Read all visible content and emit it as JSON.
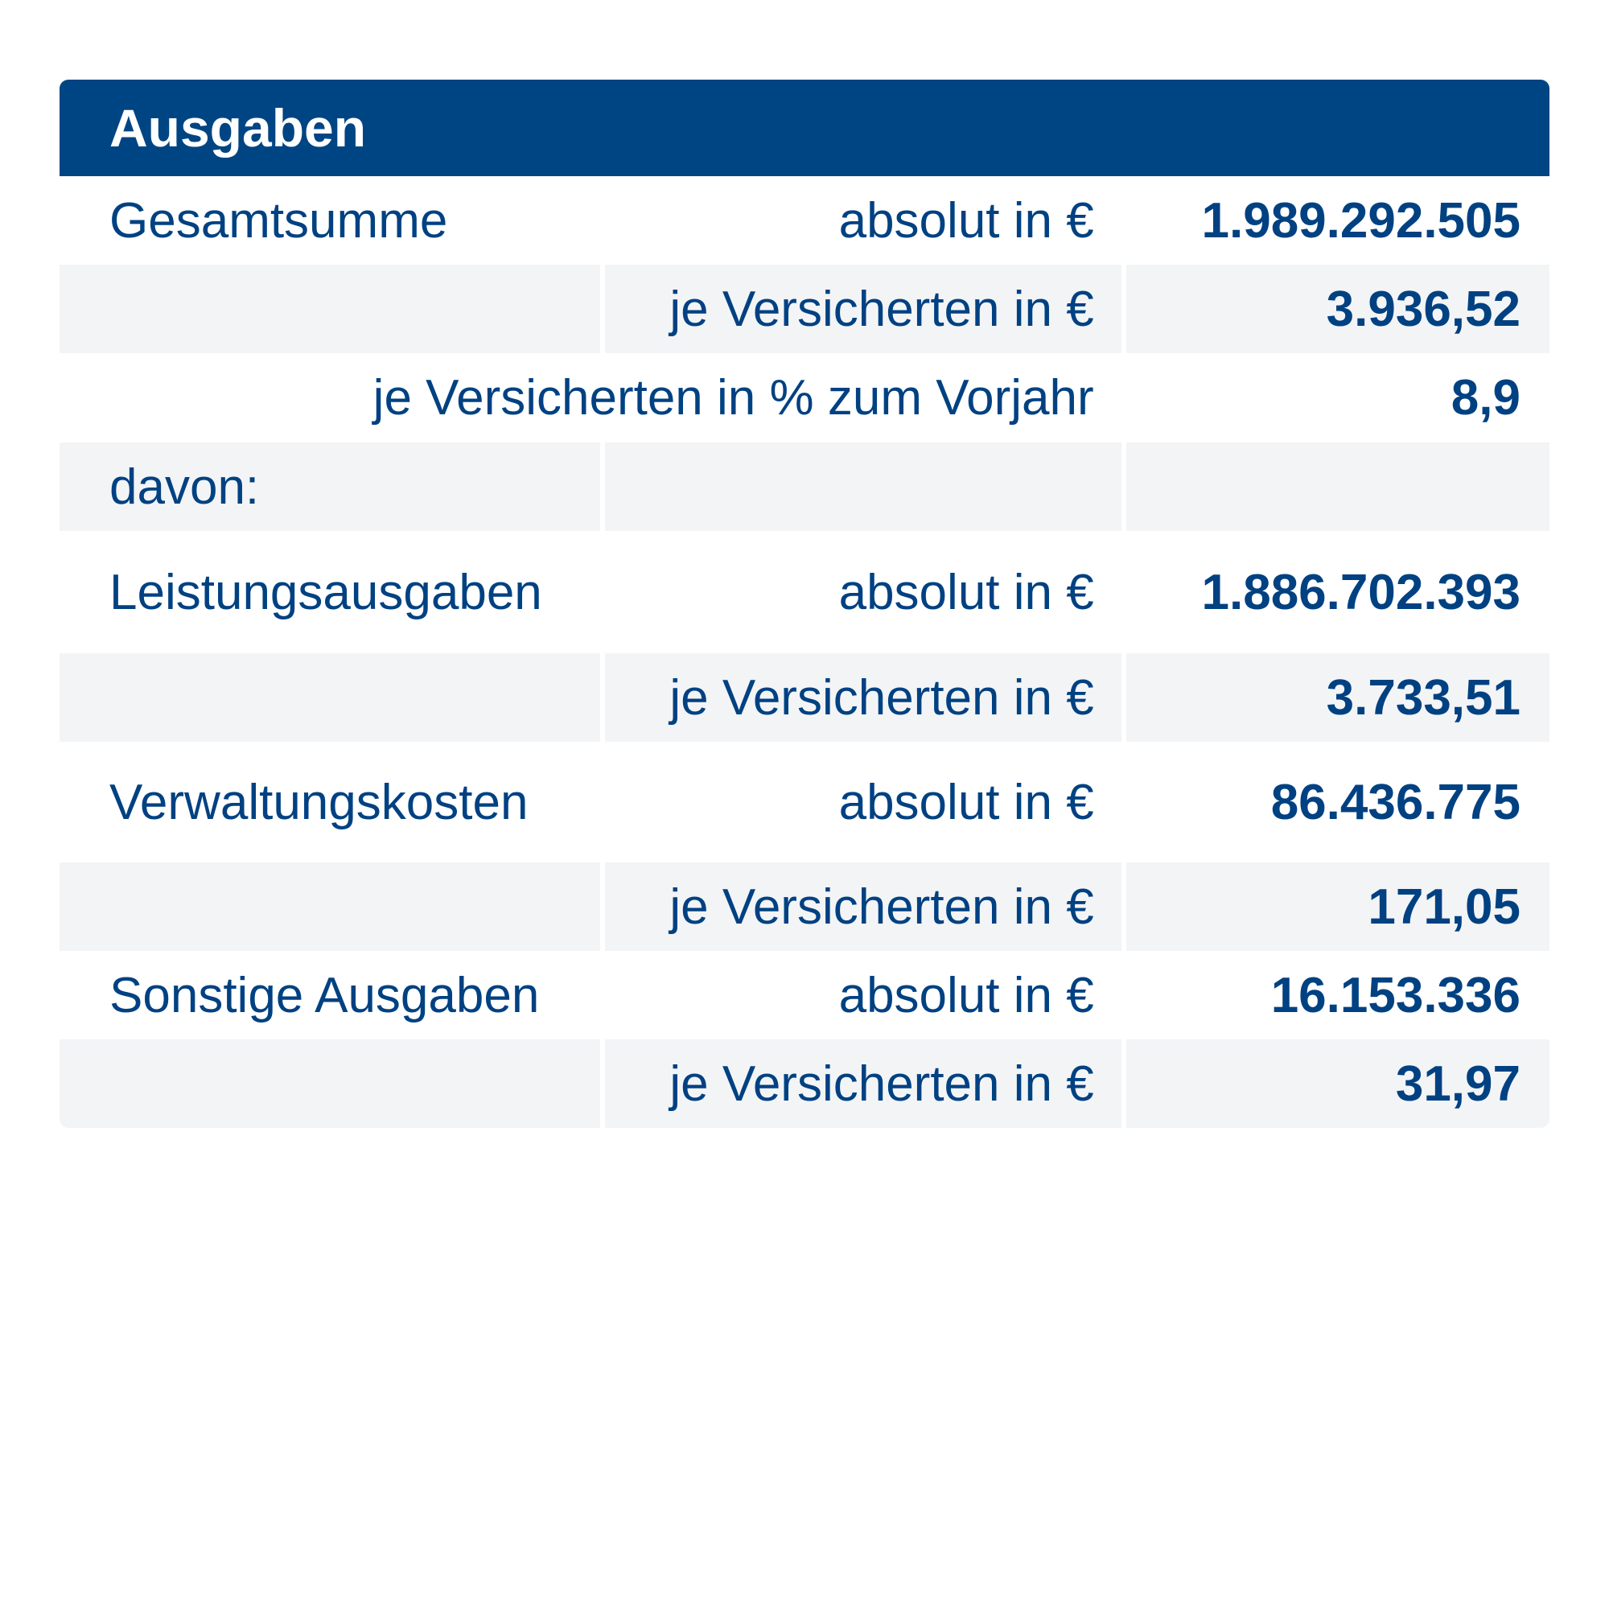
{
  "title": "Ausgaben",
  "rows": [
    {
      "label": "Gesamtsumme",
      "unit": "absolut in €",
      "value": "1.989.292.505"
    },
    {
      "label": "",
      "unit": "je Versicherten in €",
      "value": "3.936,52"
    },
    {
      "label": "",
      "unit": "je Versicherten in % zum Vorjahr",
      "value": "8,9"
    },
    {
      "label": "davon:",
      "unit": "",
      "value": ""
    },
    {
      "label": "Leistungsausgaben",
      "unit": "absolut in €",
      "value": "1.886.702.393"
    },
    {
      "label": "",
      "unit": "je Versicherten in €",
      "value": "3.733,51"
    },
    {
      "label": "Verwaltungskosten",
      "unit": "absolut in €",
      "value": "86.436.775"
    },
    {
      "label": "",
      "unit": "je Versicherten in €",
      "value": "171,05"
    },
    {
      "label": "Sonstige Ausgaben",
      "unit": "absolut in €",
      "value": "16.153.336"
    },
    {
      "label": "",
      "unit": "je Versicherten in €",
      "value": "31,97"
    }
  ],
  "colors": {
    "header_bg": "#004583",
    "text": "#004182",
    "row_shade": "#f3f4f6"
  }
}
